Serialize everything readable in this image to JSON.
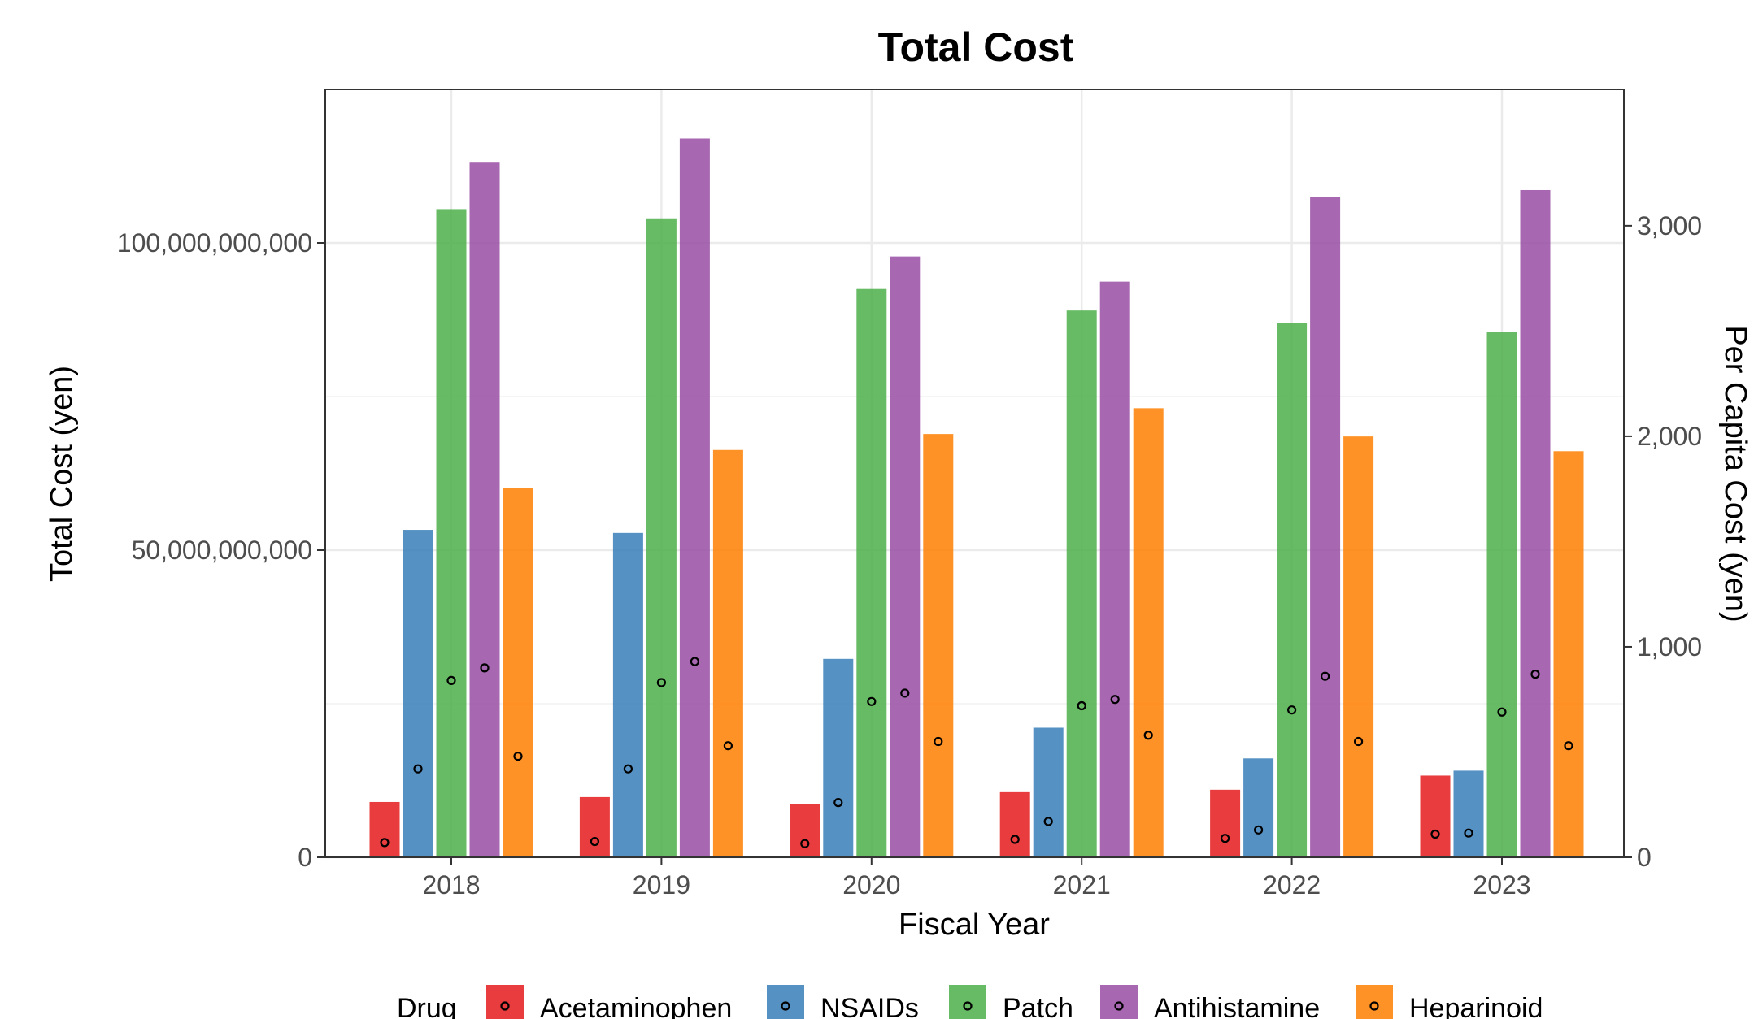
{
  "chart_data": {
    "type": "bar",
    "title": "Total Cost",
    "xlabel": "Fiscal Year",
    "ylabel": "Total Cost (yen)",
    "y2label": "Per Capita Cost (yen)",
    "categories": [
      "2018",
      "2019",
      "2020",
      "2021",
      "2022",
      "2023"
    ],
    "ylim": [
      0,
      125000000000
    ],
    "y2lim": [
      0,
      3648
    ],
    "yticks": [
      0,
      50000000000,
      100000000000
    ],
    "ytick_labels": [
      "0",
      "50,000,000,000",
      "100,000,000,000"
    ],
    "y2ticks": [
      0,
      1000,
      2000,
      3000
    ],
    "y2tick_labels": [
      "0",
      "1,000",
      "2,000",
      "3,000"
    ],
    "grid": true,
    "legend_title": "Drug",
    "legend_position": "bottom",
    "series": [
      {
        "name": "Acetaminophen",
        "color": "#e41a1c",
        "values": [
          9000000000,
          9800000000,
          8700000000,
          10600000000,
          11000000000,
          13300000000
        ],
        "per_capita": [
          70,
          75,
          65,
          85,
          90,
          110
        ]
      },
      {
        "name": "NSAIDs",
        "color": "#377eb8",
        "values": [
          53300000000,
          52800000000,
          32300000000,
          21100000000,
          16100000000,
          14100000000
        ],
        "per_capita": [
          420,
          420,
          260,
          170,
          130,
          115
        ]
      },
      {
        "name": "Patch",
        "color": "#4daf4a",
        "values": [
          105500000000,
          104000000000,
          92500000000,
          89000000000,
          87000000000,
          85500000000
        ],
        "per_capita": [
          840,
          830,
          740,
          720,
          700,
          690
        ]
      },
      {
        "name": "Antihistamine",
        "color": "#984ea3",
        "values": [
          113200000000,
          117000000000,
          97800000000,
          93700000000,
          107500000000,
          108600000000
        ],
        "per_capita": [
          900,
          930,
          780,
          750,
          860,
          870
        ]
      },
      {
        "name": "Heparinoid",
        "color": "#ff7f00",
        "values": [
          60100000000,
          66300000000,
          68900000000,
          73100000000,
          68500000000,
          66100000000
        ],
        "per_capita": [
          480,
          530,
          550,
          580,
          550,
          530
        ]
      }
    ]
  }
}
